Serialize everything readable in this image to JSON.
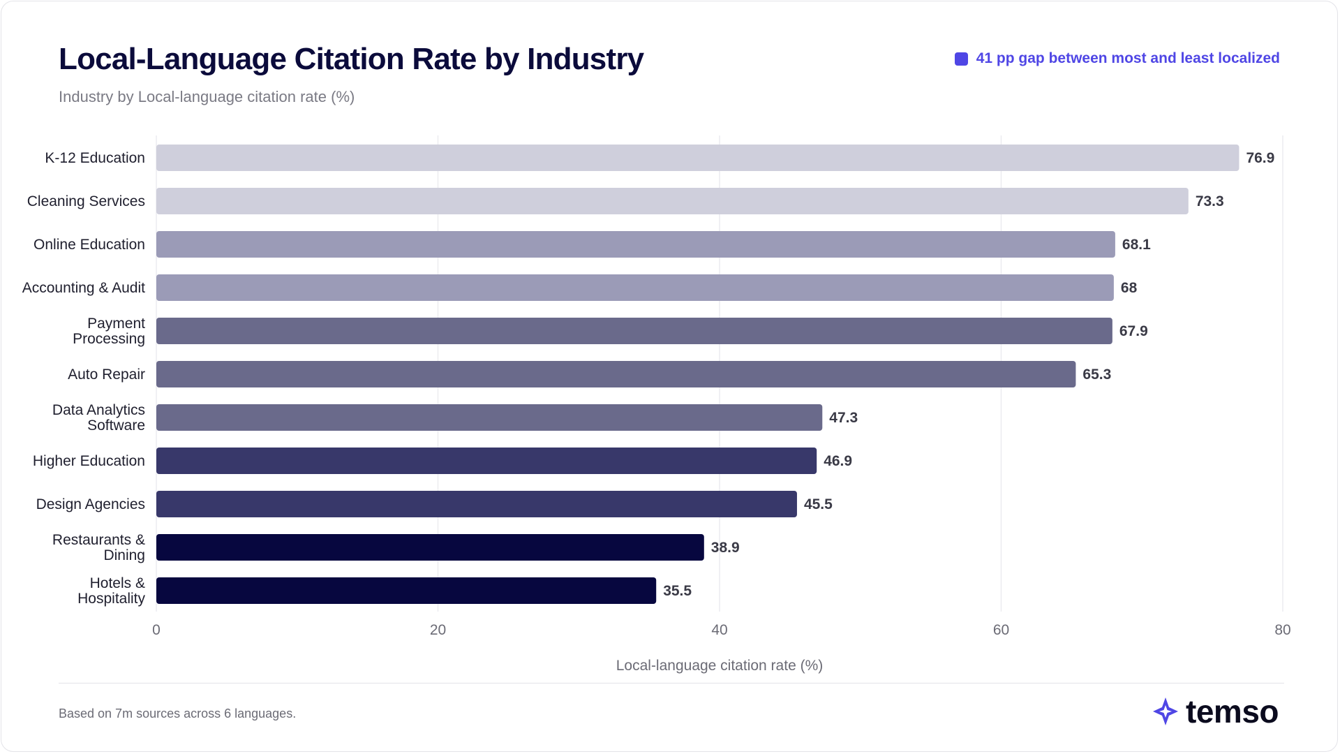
{
  "header": {
    "title": "Local-Language Citation Rate by Industry",
    "subtitle": "Industry by Local-language citation rate (%)",
    "legend_label": "41 pp gap between most and least localized"
  },
  "chart_data": {
    "type": "bar",
    "orientation": "horizontal",
    "title": "Local-Language Citation Rate by Industry",
    "subtitle": "Industry by Local-language citation rate (%)",
    "xlabel": "Local-language citation rate (%)",
    "ylabel": "",
    "xlim": [
      0,
      80
    ],
    "xticks": [
      0,
      20,
      40,
      60,
      80
    ],
    "grid": true,
    "legend": {
      "label": "41 pp gap between most and least localized",
      "placement": "top-right",
      "color": "#4f46e5"
    },
    "categories": [
      [
        "K-12 Education"
      ],
      [
        "Cleaning Services"
      ],
      [
        "Online Education"
      ],
      [
        "Accounting & Audit"
      ],
      [
        "Payment",
        "Processing"
      ],
      [
        "Auto Repair"
      ],
      [
        "Data Analytics",
        "Software"
      ],
      [
        "Higher Education"
      ],
      [
        "Design Agencies"
      ],
      [
        "Restaurants &",
        "Dining"
      ],
      [
        "Hotels &",
        "Hospitality"
      ]
    ],
    "values": [
      76.9,
      73.3,
      68.1,
      68,
      67.9,
      65.3,
      47.3,
      46.9,
      45.5,
      38.9,
      35.5
    ],
    "value_labels": [
      "76.9",
      "73.3",
      "68.1",
      "68",
      "67.9",
      "65.3",
      "47.3",
      "46.9",
      "45.5",
      "38.9",
      "35.5"
    ],
    "colors": [
      "#cfcfdc",
      "#cfcfdc",
      "#9b9bb7",
      "#9b9bb7",
      "#6a6a8b",
      "#6a6a8b",
      "#6a6a8b",
      "#38386a",
      "#38386a",
      "#07073f",
      "#07073f"
    ]
  },
  "footer": {
    "note": "Based on 7m sources across 6 languages.",
    "brand_name": "temso",
    "brand_icon": "sparkle-star-icon",
    "brand_color": "#4f46e5"
  }
}
